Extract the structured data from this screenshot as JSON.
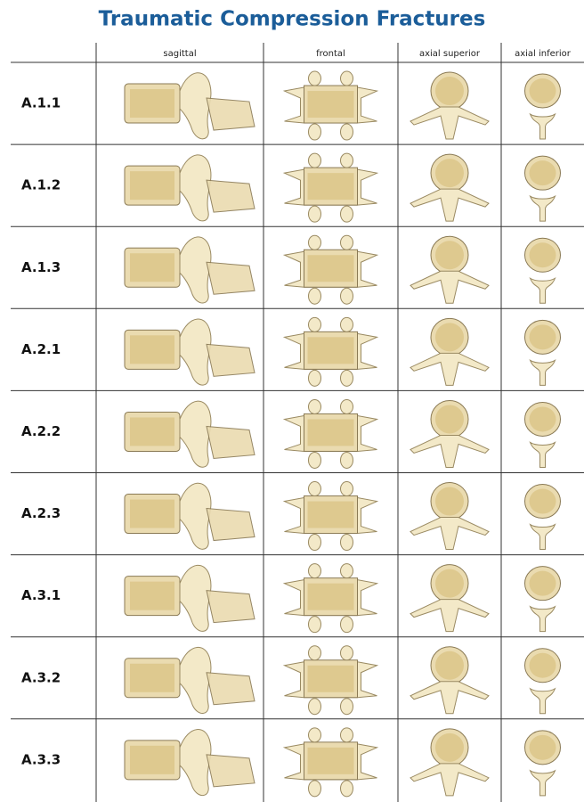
{
  "title": "Traumatic Compression Fractures",
  "table": {
    "columns": [
      "sagittal",
      "frontal",
      "axial superior",
      "axial inferior"
    ],
    "rows": [
      "A.1.1",
      "A.1.2",
      "A.1.3",
      "A.2.1",
      "A.2.2",
      "A.2.3",
      "A.3.1",
      "A.3.2",
      "A.3.3"
    ]
  }
}
